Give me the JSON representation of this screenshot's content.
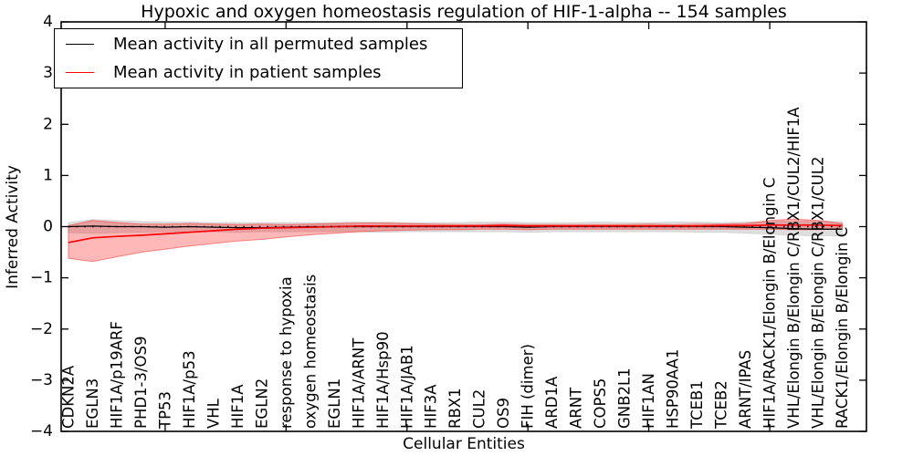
{
  "title": "Hypoxic and oxygen homeostasis regulation of HIF-1-alpha -- 154 samples",
  "axes": {
    "xlabel": "Cellular Entities",
    "ylabel": "Inferred Activity",
    "yticks": [
      4,
      3,
      2,
      1,
      0,
      -1,
      -2,
      -3,
      -4
    ],
    "xtick_values": [
      5,
      10,
      15,
      20,
      25,
      30
    ]
  },
  "legend": {
    "items": [
      {
        "label": "Mean activity in all permuted samples",
        "color": "#000000"
      },
      {
        "label": "Mean activity in patient samples",
        "color": "#ff0000"
      }
    ]
  },
  "colors": {
    "permuted_line": "#000000",
    "permuted_band": "#999999",
    "patient_line": "#ff0000",
    "patient_band": "#ff0000",
    "frame": "#000000"
  },
  "chart_data": {
    "type": "line",
    "title": "Hypoxic and oxygen homeostasis regulation of HIF-1-alpha -- 154 samples",
    "xlabel": "Cellular Entities",
    "ylabel": "Inferred Activity",
    "ylim": [
      -4,
      4
    ],
    "xlim": [
      0.7,
      34
    ],
    "grid": false,
    "legend_position": "upper left",
    "x": [
      1,
      2,
      3,
      4,
      5,
      6,
      7,
      8,
      9,
      10,
      11,
      12,
      13,
      14,
      15,
      16,
      17,
      18,
      19,
      20,
      21,
      22,
      23,
      24,
      25,
      26,
      27,
      28,
      29,
      30,
      31,
      32,
      33
    ],
    "categories": [
      "CDKN2A",
      "EGLN3",
      "HIF1A/p19ARF",
      "PHD1-3/OS9",
      "TP53",
      "HIF1A/p53",
      "VHL",
      "HIF1A",
      "EGLN2",
      "response to hypoxia",
      "oxygen homeostasis",
      "EGLN1",
      "HIF1A/ARNT",
      "HIF1A/Hsp90",
      "HIF1A/JAB1",
      "HIF3A",
      "RBX1",
      "CUL2",
      "OS9",
      "FIH (dimer)",
      "ARD1A",
      "ARNT",
      "COPS5",
      "GNB2L1",
      "HIF1AN",
      "HSP90AA1",
      "TCEB1",
      "TCEB2",
      "ARNT/IPAS",
      "HIF1A/RACK1/Elongin B/Elongin C",
      "VHL/Elongin B/Elongin C/RBX1/CUL2/HIF1A",
      "VHL/Elongin B/Elongin C/RBX1/CUL2",
      "RACK1/Elongin B/Elongin C"
    ],
    "zero_reference_line": {
      "value": 0,
      "style": "dotted",
      "color": "#000000"
    },
    "series": [
      {
        "name": "Mean activity in all permuted samples",
        "color": "#000000",
        "values": [
          0.0,
          0.01,
          0.0,
          0.0,
          -0.01,
          0.0,
          -0.01,
          -0.02,
          -0.02,
          -0.01,
          0.0,
          0.0,
          0.0,
          0.0,
          0.0,
          0.0,
          0.0,
          0.0,
          0.0,
          -0.01,
          0.0,
          0.0,
          0.0,
          0.0,
          0.0,
          0.0,
          0.0,
          0.0,
          -0.01,
          -0.02,
          -0.04,
          -0.05,
          -0.05
        ],
        "band_upper": [
          0.08,
          0.14,
          0.12,
          0.1,
          0.09,
          0.09,
          0.08,
          0.08,
          0.08,
          0.08,
          0.08,
          0.08,
          0.09,
          0.09,
          0.08,
          0.08,
          0.08,
          0.09,
          0.09,
          0.08,
          0.08,
          0.08,
          0.09,
          0.08,
          0.08,
          0.09,
          0.09,
          0.08,
          0.09,
          0.1,
          0.11,
          0.11,
          0.1
        ],
        "band_lower": [
          -0.12,
          -0.13,
          -0.12,
          -0.11,
          -0.1,
          -0.1,
          -0.1,
          -0.11,
          -0.1,
          -0.1,
          -0.1,
          -0.1,
          -0.1,
          -0.11,
          -0.1,
          -0.1,
          -0.1,
          -0.1,
          -0.1,
          -0.11,
          -0.1,
          -0.1,
          -0.1,
          -0.1,
          -0.1,
          -0.1,
          -0.11,
          -0.11,
          -0.13,
          -0.15,
          -0.17,
          -0.18,
          -0.18
        ]
      },
      {
        "name": "Mean activity in patient samples",
        "color": "#ff0000",
        "values": [
          -0.31,
          -0.22,
          -0.19,
          -0.17,
          -0.14,
          -0.11,
          -0.08,
          -0.05,
          -0.03,
          -0.02,
          -0.01,
          0.0,
          0.01,
          0.01,
          0.01,
          0.01,
          0.01,
          0.01,
          0.02,
          0.01,
          0.01,
          0.01,
          0.01,
          0.01,
          0.01,
          0.01,
          0.01,
          0.02,
          0.02,
          0.03,
          0.03,
          0.03,
          0.02
        ],
        "band_upper": [
          0.02,
          0.12,
          0.08,
          0.05,
          0.05,
          0.06,
          0.05,
          0.04,
          0.05,
          0.04,
          0.05,
          0.06,
          0.07,
          0.07,
          0.06,
          0.05,
          0.04,
          0.04,
          0.05,
          0.04,
          0.04,
          0.04,
          0.04,
          0.04,
          0.05,
          0.04,
          0.05,
          0.05,
          0.06,
          0.12,
          0.15,
          0.12,
          0.06
        ],
        "band_lower": [
          -0.62,
          -0.68,
          -0.59,
          -0.5,
          -0.44,
          -0.38,
          -0.33,
          -0.28,
          -0.25,
          -0.2,
          -0.16,
          -0.13,
          -0.1,
          -0.08,
          -0.07,
          -0.06,
          -0.06,
          -0.05,
          -0.05,
          -0.06,
          -0.05,
          -0.05,
          -0.05,
          -0.05,
          -0.05,
          -0.05,
          -0.05,
          -0.05,
          -0.05,
          -0.05,
          -0.06,
          -0.06,
          -0.04
        ]
      }
    ]
  }
}
